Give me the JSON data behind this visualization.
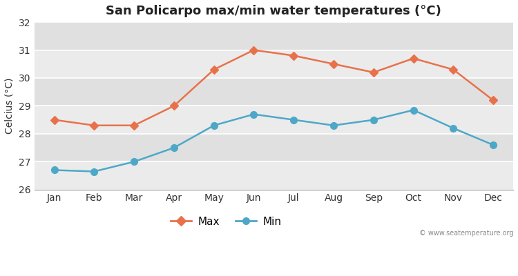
{
  "title": "San Policarpo max/min water temperatures (°C)",
  "ylabel": "Celcius (°C)",
  "months": [
    "Jan",
    "Feb",
    "Mar",
    "Apr",
    "May",
    "Jun",
    "Jul",
    "Aug",
    "Sep",
    "Oct",
    "Nov",
    "Dec"
  ],
  "max_temps": [
    28.5,
    28.3,
    28.3,
    29.0,
    30.3,
    31.0,
    30.8,
    30.5,
    30.2,
    30.7,
    30.3,
    29.2
  ],
  "min_temps": [
    26.7,
    26.65,
    27.0,
    27.5,
    28.3,
    28.7,
    28.5,
    28.3,
    28.5,
    28.85,
    28.2,
    27.6
  ],
  "max_color": "#e8714a",
  "min_color": "#4da8c8",
  "ylim": [
    26,
    32
  ],
  "yticks": [
    26,
    27,
    28,
    29,
    30,
    31,
    32
  ],
  "outer_bg_color": "#ffffff",
  "plot_bg_color": "#ebebeb",
  "strip_color": "#e0e0e0",
  "grid_color": "#ffffff",
  "watermark": "© www.seatemperature.org",
  "legend_labels": [
    "Max",
    "Min"
  ],
  "title_fontsize": 13,
  "label_fontsize": 10,
  "tick_fontsize": 10,
  "line_width": 1.8,
  "marker_size": 6
}
